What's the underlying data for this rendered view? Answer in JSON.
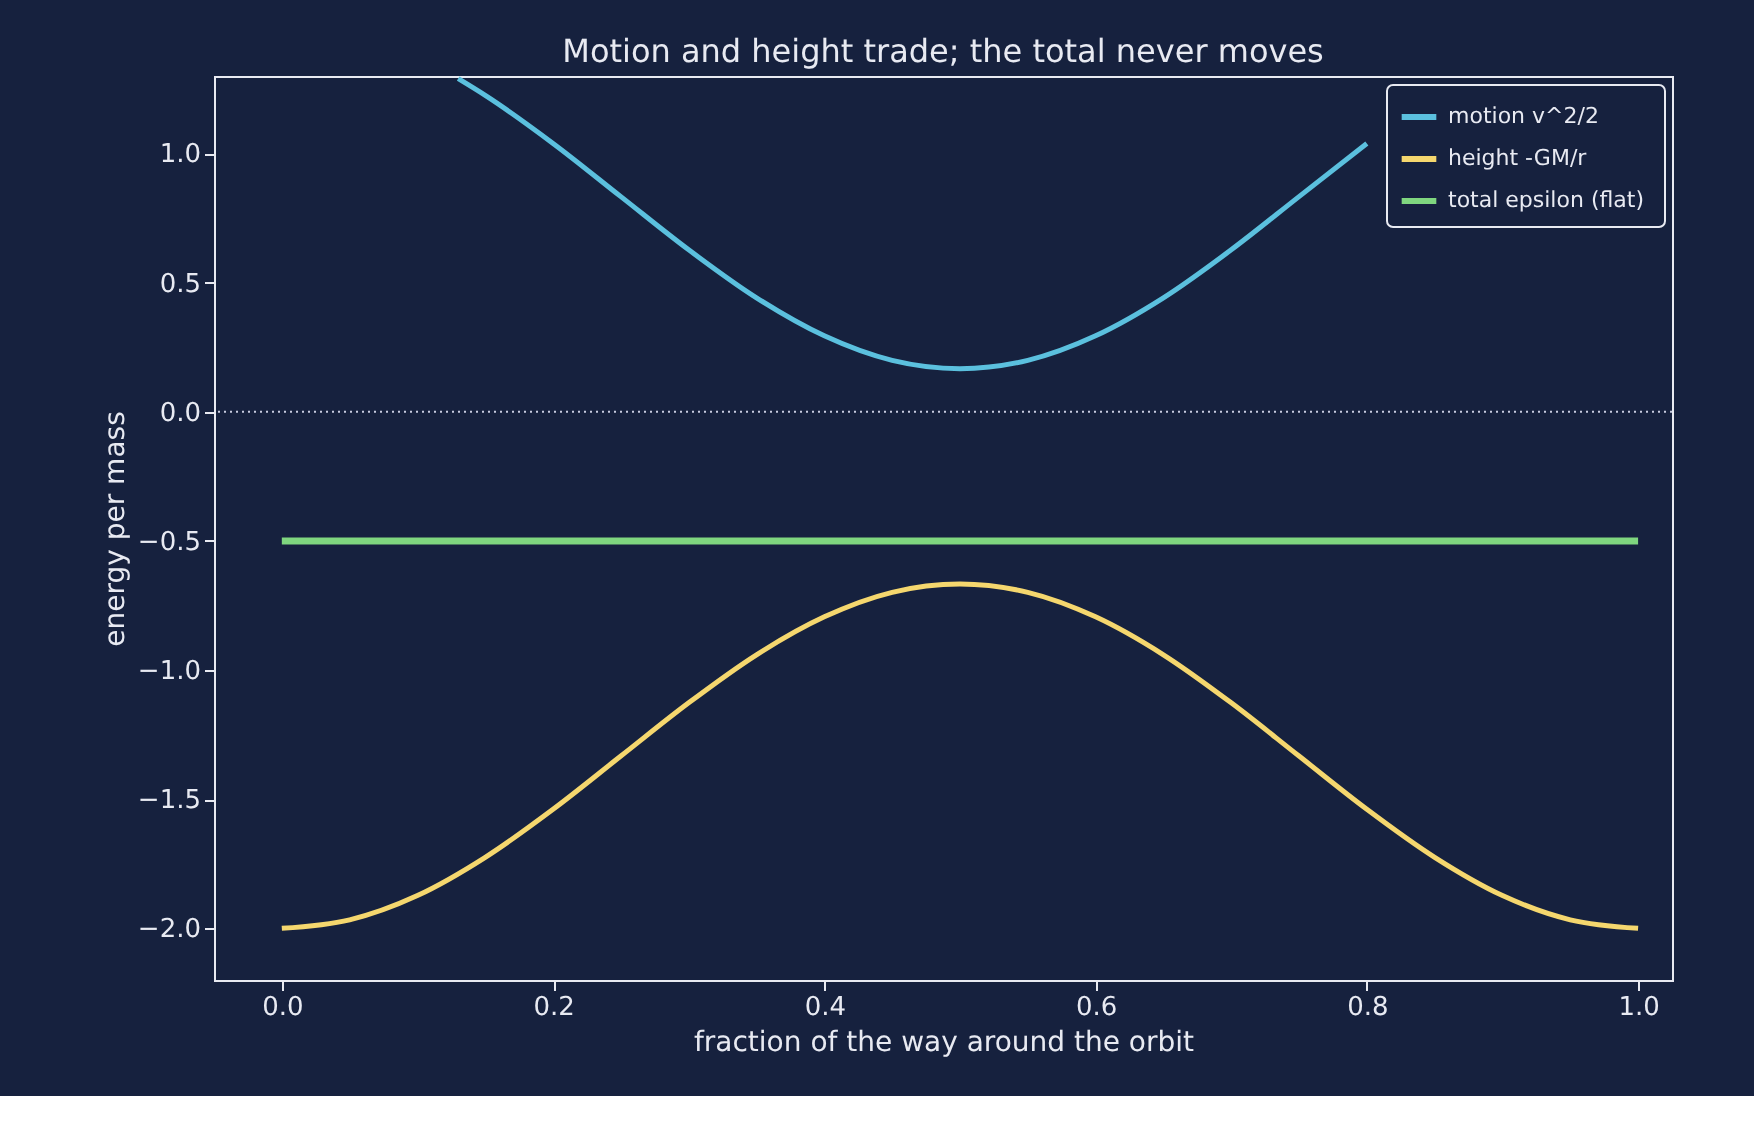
{
  "chart_data": {
    "type": "line",
    "title": "Motion and height trade; the total never moves",
    "xlabel": "fraction of the way around the orbit",
    "ylabel": "energy per mass",
    "xlim": [
      -0.05,
      1.025
    ],
    "ylim": [
      -2.2,
      1.3
    ],
    "xticks": [
      {
        "value": 0,
        "label": "0.0"
      },
      0.2,
      0.4,
      0.6,
      0.8,
      {
        "value": 1,
        "label": "1.0"
      }
    ],
    "yticks": [
      {
        "value": -2,
        "label": "−2.0"
      },
      -1.5,
      {
        "value": -1,
        "label": "−1.0"
      },
      -0.5,
      {
        "value": 0,
        "label": "0.0"
      },
      0.5,
      {
        "value": 1,
        "label": "1.0"
      }
    ],
    "grid": false,
    "legend": "top right",
    "line_style": "solid",
    "marker": "none",
    "ref_lines": [
      {
        "axis": "y",
        "value": 0,
        "color": "#c8cce0",
        "line_style": "dotted"
      }
    ],
    "series": [
      {
        "name": "motion  v^2/2",
        "color": "#5bc0de",
        "x": [
          0.13,
          0.15,
          0.2,
          0.25,
          0.3,
          0.35,
          0.4,
          0.45,
          0.5,
          0.55,
          0.6,
          0.65,
          0.7,
          0.75,
          0.8
        ],
        "values": [
          1.29,
          1.225,
          1.039,
          0.833,
          0.627,
          0.441,
          0.294,
          0.199,
          0.167,
          0.199,
          0.294,
          0.441,
          0.627,
          0.833,
          1.039
        ]
      },
      {
        "name": "height  -GM/r",
        "color": "#f5d76e",
        "x": [
          0,
          0.05,
          0.1,
          0.15,
          0.2,
          0.25,
          0.3,
          0.35,
          0.4,
          0.45,
          0.5,
          0.55,
          0.6,
          0.65,
          0.7,
          0.75,
          0.8,
          0.85,
          0.9,
          0.95,
          1.0
        ],
        "values": [
          -2.0,
          -1.967,
          -1.873,
          -1.725,
          -1.539,
          -1.333,
          -1.127,
          -0.941,
          -0.794,
          -0.699,
          -0.667,
          -0.699,
          -0.794,
          -0.941,
          -1.127,
          -1.333,
          -1.539,
          -1.725,
          -1.873,
          -1.967,
          -2.0
        ]
      },
      {
        "name": "total  epsilon (flat)",
        "color": "#7fd67f",
        "x": [
          0,
          1.0
        ],
        "values": [
          -0.5,
          -0.5
        ]
      }
    ]
  }
}
